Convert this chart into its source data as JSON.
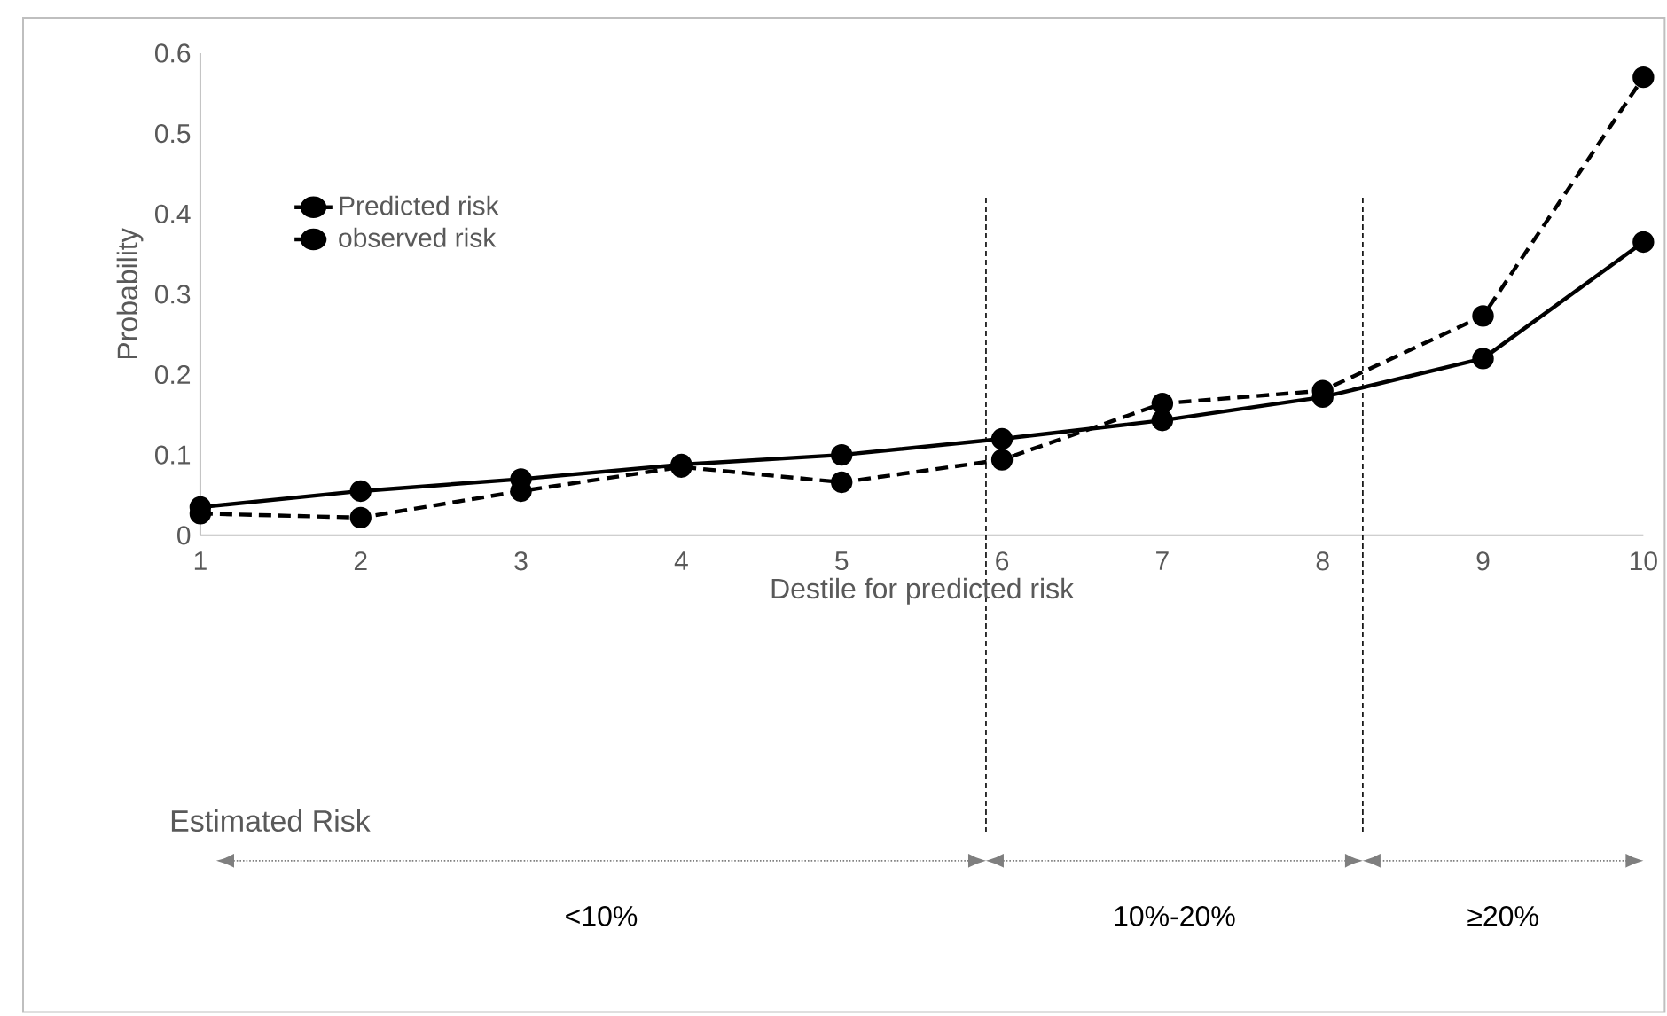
{
  "chart_data": {
    "type": "line",
    "xlabel": "Destile for predicted risk",
    "ylabel": "Probability",
    "x": [
      1,
      2,
      3,
      4,
      5,
      6,
      7,
      8,
      9,
      10
    ],
    "series": [
      {
        "name": "Predicted risk",
        "color": "#000000",
        "line_style": "solid",
        "values": [
          0.035,
          0.055,
          0.07,
          0.088,
          0.1,
          0.12,
          0.143,
          0.172,
          0.22,
          0.365
        ]
      },
      {
        "name": "observed risk",
        "color": "#000000",
        "line_style": "dashed",
        "values": [
          0.027,
          0.022,
          0.055,
          0.085,
          0.066,
          0.094,
          0.164,
          0.18,
          0.273,
          0.57
        ]
      }
    ],
    "marker": "circle",
    "legend": "top left",
    "xlim": [
      1,
      10
    ],
    "xticks": [
      1,
      2,
      3,
      4,
      5,
      6,
      7,
      8,
      9,
      10
    ],
    "ylim": [
      0,
      0.6
    ],
    "yticks": [
      0,
      0.1,
      0.2,
      0.3,
      0.4,
      0.5,
      0.6
    ],
    "ref_lines": [
      {
        "axis": "x",
        "value": 5.9,
        "color": "#000000",
        "line_style": "dashed"
      },
      {
        "axis": "x",
        "value": 8.25,
        "color": "#000000",
        "line_style": "dashed"
      }
    ],
    "annotations": [
      "Estimated Risk",
      "<10%",
      "10%-20%",
      "≥20%"
    ]
  }
}
